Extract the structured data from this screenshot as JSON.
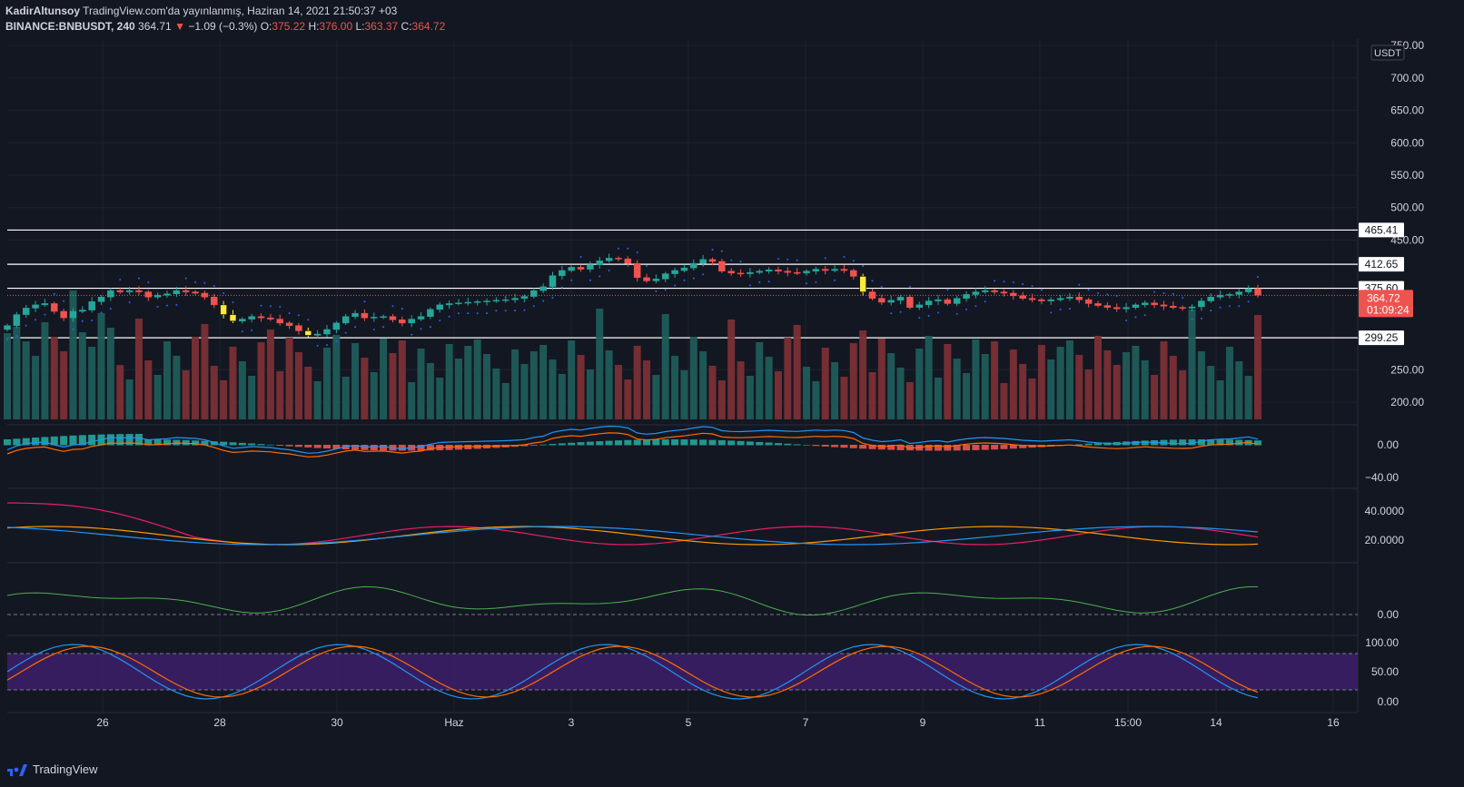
{
  "header": {
    "author": "KadirAltunsoy",
    "published": "TradingView.com'da yayınlanmış, Haziran 14, 2021 21:50:37 +03",
    "symbol": "BINANCE:BNBUSDT, 240",
    "last": "364.71",
    "arrow": "▼",
    "change": "−1.09 (−0.3%)",
    "o_label": "O:",
    "o_val": "375.22",
    "h_label": "H:",
    "h_val": "376.00",
    "l_label": "L:",
    "l_val": "363.37",
    "c_label": "C:",
    "c_val": "364.72"
  },
  "currency": "USDT",
  "footer": {
    "brand": "TradingView"
  },
  "colors": {
    "bg": "#131722",
    "up": "#26a69a",
    "down": "#ef5350",
    "grid": "#1e222d",
    "text": "#d1d4dc",
    "stoch_band": "#3d1f6b",
    "yellow": "#ffeb3b"
  },
  "chart_data": {
    "type": "candlestick",
    "x_ticks": [
      "26",
      "28",
      "30",
      "Haz",
      "3",
      "5",
      "7",
      "9",
      "11",
      "15:00",
      "14",
      "16"
    ],
    "price_axis": {
      "ticks": [
        "750.00",
        "700.00",
        "650.00",
        "600.00",
        "550.00",
        "500.00",
        "450.00",
        "250.00",
        "200.00"
      ],
      "ylim": [
        165,
        760
      ]
    },
    "levels": [
      "465.41",
      "412.65",
      "375.60",
      "299.25"
    ],
    "current_price": "364.72",
    "countdown": "01:09:24",
    "close_prices": [
      318,
      335,
      345,
      350,
      352,
      340,
      330,
      340,
      342,
      355,
      362,
      372,
      370,
      372,
      370,
      362,
      365,
      367,
      372,
      370,
      368,
      362,
      350,
      335,
      325,
      328,
      332,
      330,
      328,
      322,
      318,
      310,
      303,
      305,
      312,
      322,
      332,
      337,
      330,
      331,
      332,
      327,
      322,
      328,
      332,
      343,
      350,
      352,
      353,
      354,
      355,
      356,
      357,
      358,
      360,
      363,
      372,
      378,
      395,
      403,
      408,
      405,
      412,
      418,
      422,
      421,
      414,
      392,
      387,
      390,
      398,
      403,
      407,
      414,
      420,
      417,
      402,
      399,
      398,
      400,
      402,
      404,
      402,
      400,
      399,
      402,
      405,
      403,
      405,
      403,
      394,
      370,
      360,
      354,
      357,
      362,
      346,
      350,
      356,
      358,
      352,
      360,
      366,
      370,
      372,
      370,
      368,
      364,
      360,
      358,
      356,
      358,
      360,
      362,
      358,
      352,
      349,
      346,
      344,
      346,
      350,
      353,
      350,
      348,
      346,
      345,
      347,
      356,
      362,
      365,
      366,
      370,
      375,
      365
    ],
    "macd_axis": [
      "0.00",
      "−40.00"
    ],
    "adx_axis": [
      "40.0000",
      "20.0000"
    ],
    "osc_axis": [
      "0.00"
    ],
    "stoch_axis": [
      "100.00",
      "50.00",
      "0.00"
    ]
  }
}
